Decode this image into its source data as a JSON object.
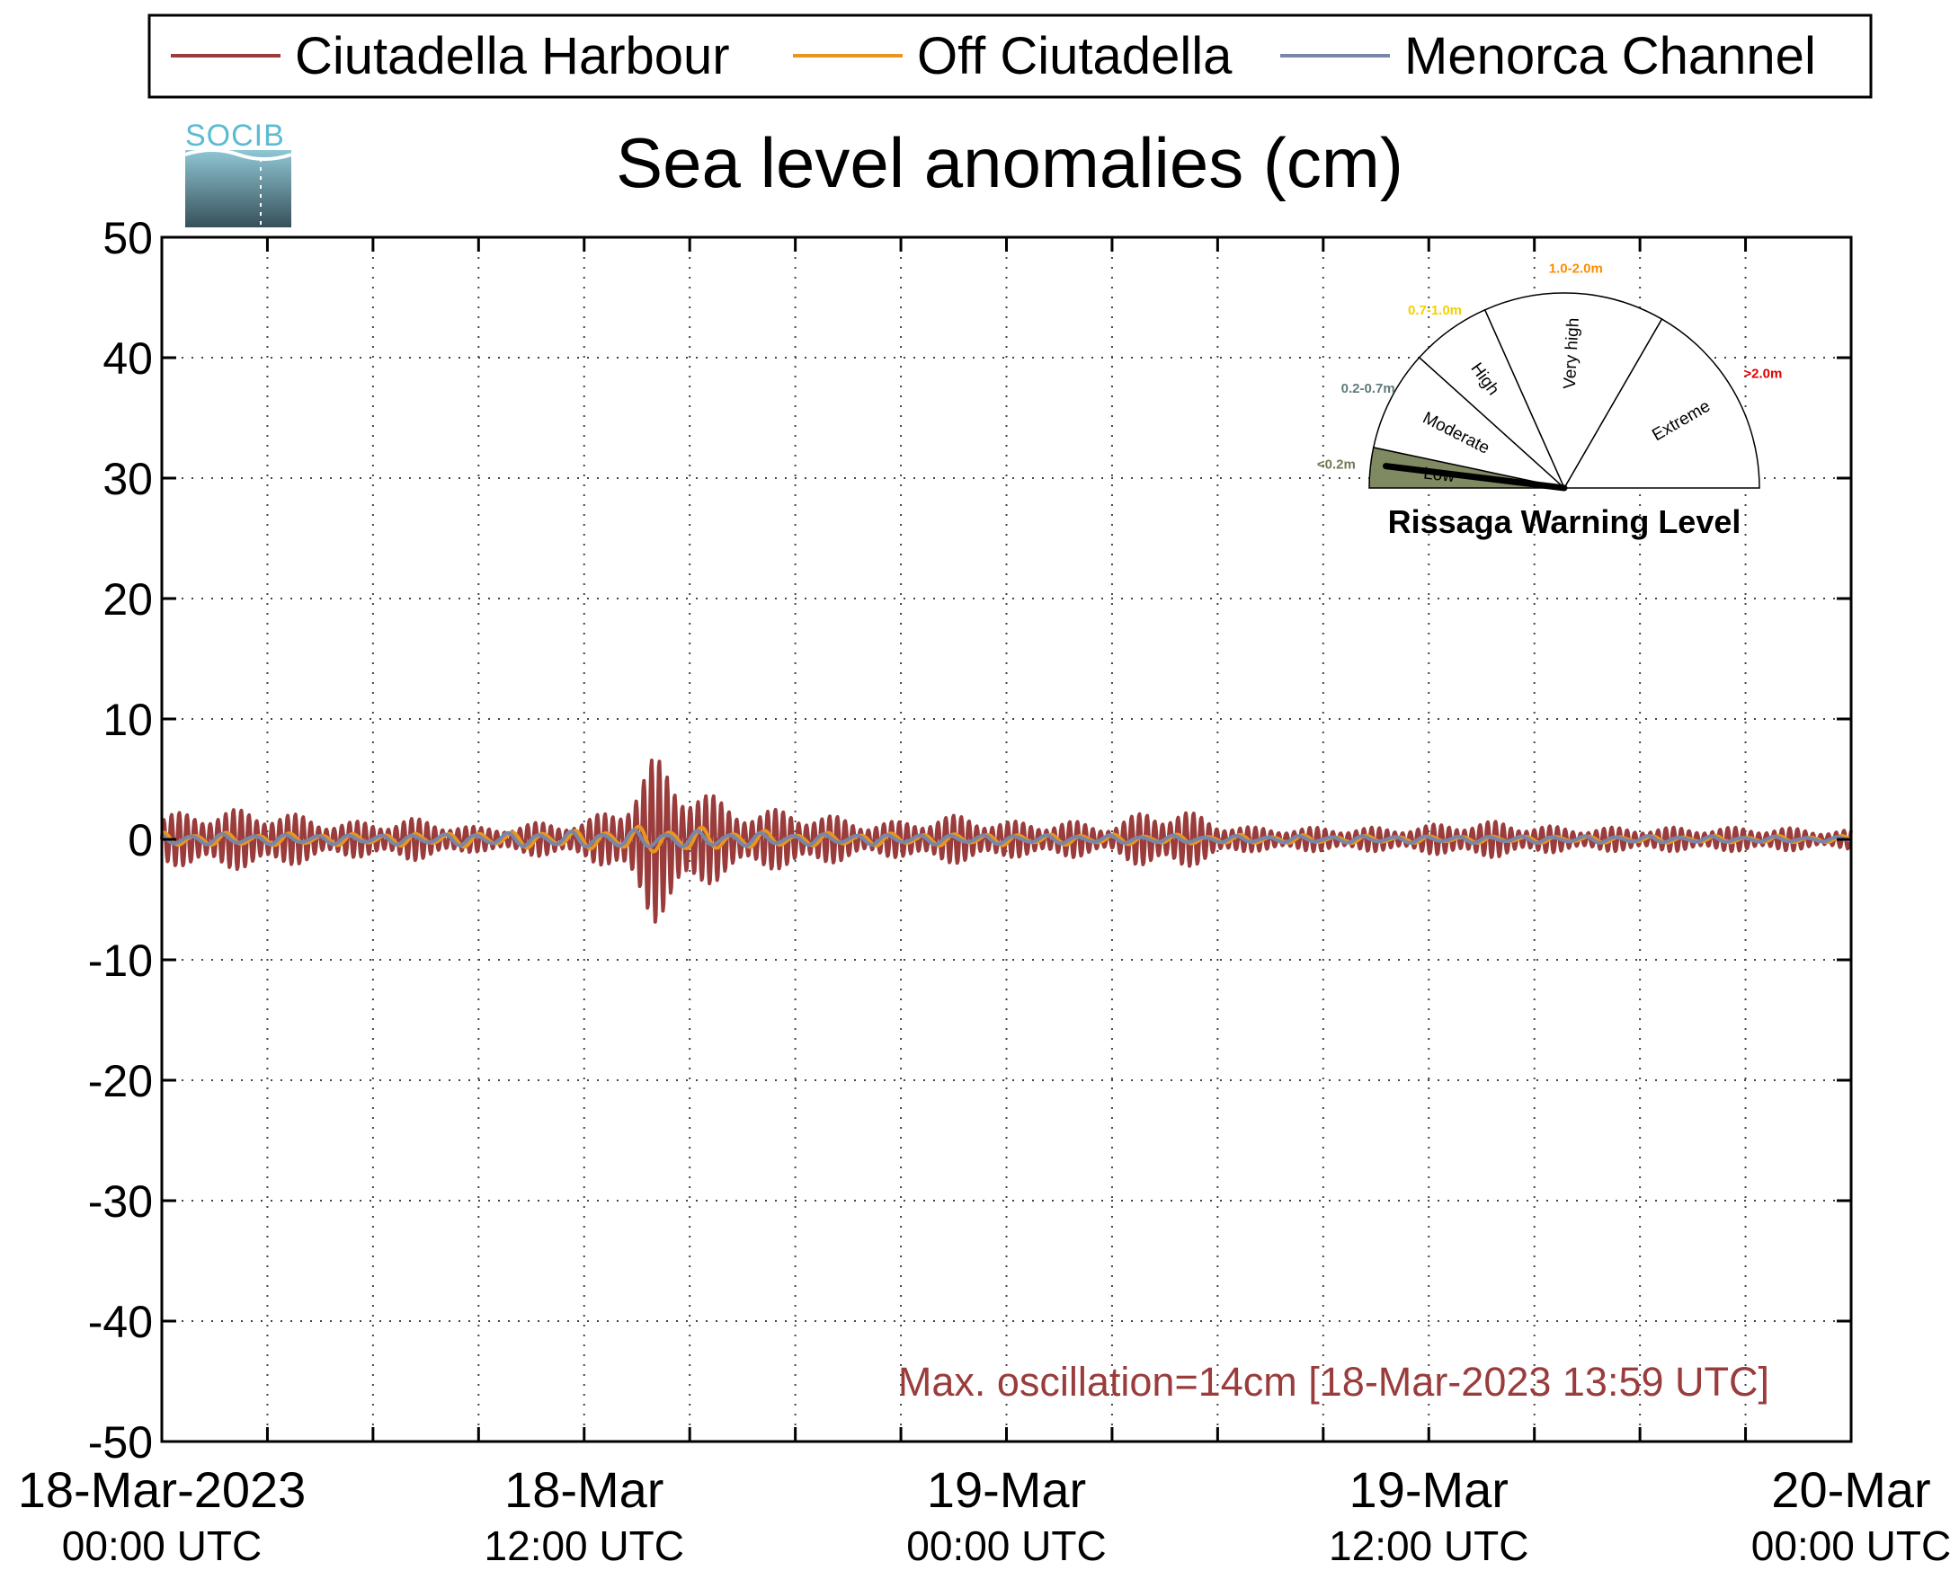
{
  "chart_data": {
    "type": "line",
    "title": "Sea level anomalies (cm)",
    "xlabel": "",
    "ylabel": "",
    "ylim": [
      -50,
      50
    ],
    "yticks": [
      "50",
      "40",
      "30",
      "20",
      "10",
      "0",
      "-10",
      "-20",
      "-30",
      "-40",
      "-50"
    ],
    "xlim": [
      "2023-03-18 00:00",
      "2023-03-20 00:00"
    ],
    "xtick_labels": [
      {
        "main": "18-Mar-2023",
        "sub": "00:00 UTC"
      },
      {
        "main": "18-Mar",
        "sub": "12:00 UTC"
      },
      {
        "main": "19-Mar",
        "sub": "00:00 UTC"
      },
      {
        "main": "19-Mar",
        "sub": "12:00 UTC"
      },
      {
        "main": "20-Mar",
        "sub": "00:00 UTC"
      }
    ],
    "grid": true,
    "legend_position": "top",
    "series": [
      {
        "name": "Ciutadella Harbour",
        "color": "#9a3c3c",
        "x_hours": [
          0,
          1,
          2,
          3,
          4,
          5,
          6,
          7,
          8,
          9,
          10,
          11,
          12,
          13,
          13.98,
          15,
          16,
          17,
          18,
          19,
          20,
          21,
          22,
          23,
          24,
          25,
          26,
          27,
          28,
          29,
          30,
          31,
          32,
          33,
          34,
          35,
          36,
          37,
          38,
          39,
          40,
          41,
          42,
          43,
          44,
          45,
          46,
          47,
          48
        ],
        "envelope_cm": [
          2,
          2.5,
          2.5,
          2.5,
          2,
          1.5,
          1.5,
          1.8,
          1.5,
          1,
          1.2,
          1.5,
          1.5,
          3,
          7,
          5,
          3,
          2.5,
          2.5,
          2,
          1.5,
          1.5,
          2,
          2,
          1.5,
          1.5,
          1.5,
          1.2,
          2.5,
          2.5,
          1.5,
          1,
          1,
          1,
          1,
          1,
          1.2,
          1.5,
          1.5,
          1.2,
          1,
          1,
          1,
          1,
          1,
          1,
          1,
          0.8,
          0.8
        ]
      },
      {
        "name": "Off Ciutadella",
        "color": "#e8961e",
        "x_hours": [
          0,
          6,
          12,
          14,
          18,
          24,
          30,
          36,
          42,
          48
        ],
        "envelope_cm": [
          0.6,
          0.5,
          0.8,
          1.2,
          0.6,
          0.5,
          0.4,
          0.3,
          0.3,
          0.3
        ]
      },
      {
        "name": "Menorca Channel",
        "color": "#7a86a8",
        "x_hours": [
          0,
          6,
          12,
          14,
          18,
          24,
          30,
          36,
          42,
          48
        ],
        "envelope_cm": [
          0.5,
          0.4,
          0.7,
          0.8,
          0.5,
          0.4,
          0.3,
          0.3,
          0.3,
          0.2
        ]
      }
    ],
    "annotation": "Max. oscillation=14cm [18-Mar-2023 13:59 UTC]",
    "annotation_color": "#9a3c3c"
  },
  "logo": {
    "text": "SOCIB"
  },
  "gauge": {
    "title": "Rissaga Warning Level",
    "current_level": "Low",
    "sectors": [
      {
        "label": "Low",
        "range": "<0.2m",
        "range_color": "#6f7a52",
        "fill": "#7f8a62"
      },
      {
        "label": "Moderate",
        "range": "0.2-0.7m",
        "range_color": "#5f7a7a",
        "fill": "#ffffff"
      },
      {
        "label": "High",
        "range": "0.7-1.0m",
        "range_color": "#f5d000",
        "fill": "#ffffff"
      },
      {
        "label": "Very high",
        "range": "1.0-2.0m",
        "range_color": "#ff8c00",
        "fill": "#ffffff"
      },
      {
        "label": "Extreme",
        "range": ">2.0m",
        "range_color": "#e00000",
        "fill": "#ffffff"
      }
    ]
  }
}
